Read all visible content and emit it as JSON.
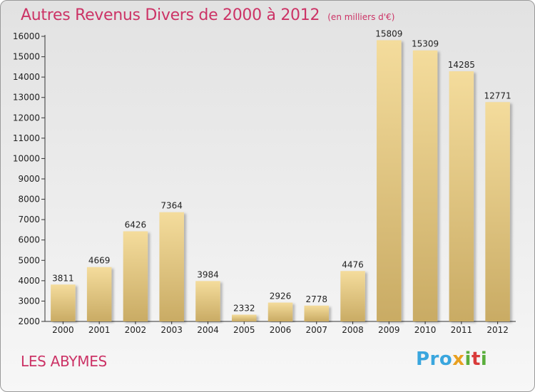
{
  "title": "Autres Revenus Divers de 2000 à 2012",
  "title_unit": "(en milliers d'€)",
  "place_name": "LES ABYMES",
  "logo": {
    "p1": "Pro",
    "p2": "x",
    "p3": "i",
    "p4": "t",
    "p5": "i"
  },
  "colors": {
    "title": "#cc3366",
    "bar_light": "#f4dc9c",
    "bar_dark": "#c9ab64"
  },
  "chart_data": {
    "type": "bar",
    "title": "Autres Revenus Divers de 2000 à 2012",
    "subtitle": "(en milliers d'€)",
    "xlabel": "",
    "ylabel": "",
    "categories": [
      "2000",
      "2001",
      "2002",
      "2003",
      "2004",
      "2005",
      "2006",
      "2007",
      "2008",
      "2009",
      "2010",
      "2011",
      "2012"
    ],
    "values": [
      3811,
      4669,
      6426,
      7364,
      3984,
      2332,
      2926,
      2778,
      4476,
      15809,
      15309,
      14285,
      12771
    ],
    "ylim": [
      2000,
      16000
    ],
    "yticks": [
      2000,
      3000,
      4000,
      5000,
      6000,
      7000,
      8000,
      9000,
      10000,
      11000,
      12000,
      13000,
      14000,
      15000,
      16000
    ],
    "grid": false,
    "legend": "none"
  }
}
